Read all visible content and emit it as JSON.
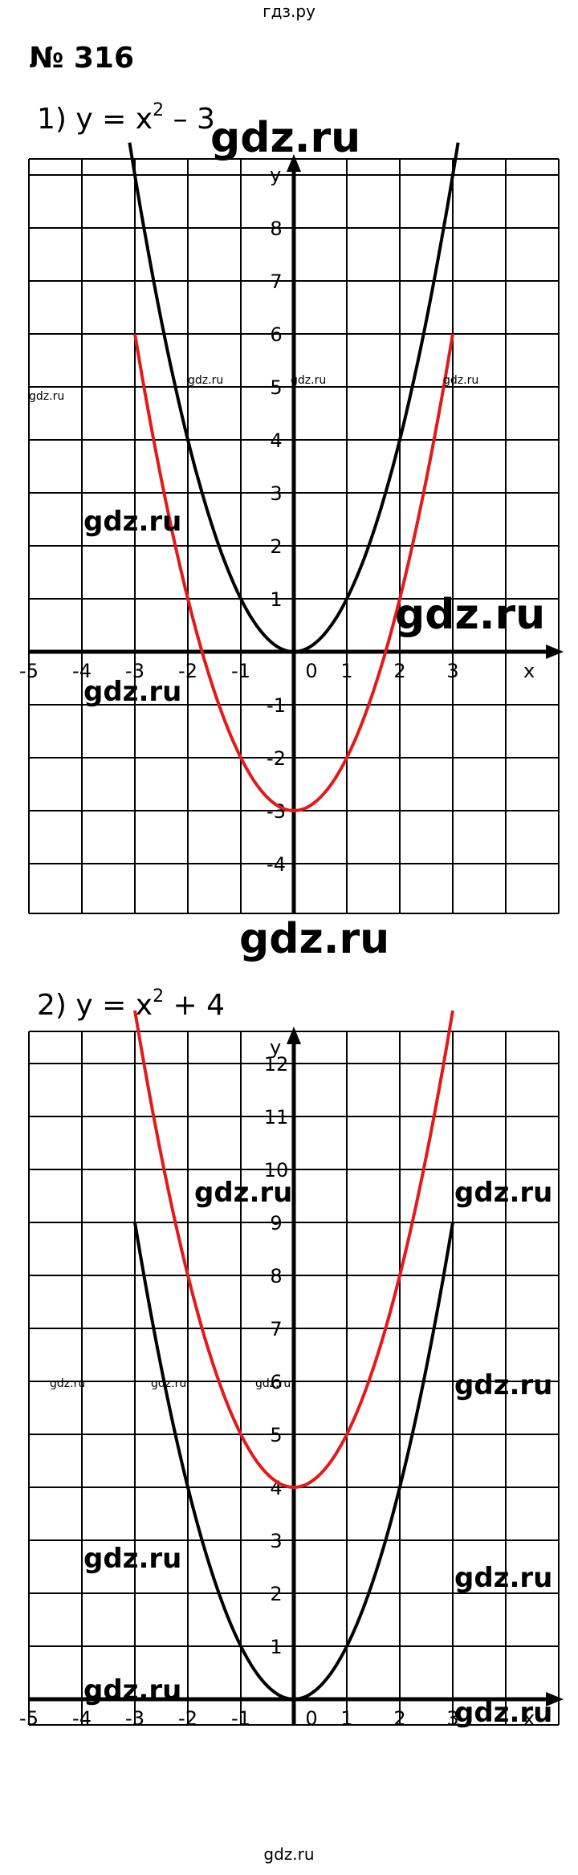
{
  "header": {
    "site": "гдз.ру"
  },
  "footer": {
    "site": "gdz.ru"
  },
  "task": {
    "number": "№ 316"
  },
  "watermark": "gdz.ru",
  "chart_data": [
    {
      "type": "line",
      "title": "1) y = x² − 3",
      "title_parts": {
        "prefix": "1) y = x",
        "exponent": "2",
        "suffix": " – 3"
      },
      "xlabel": "x",
      "ylabel": "y",
      "xlim": [
        -5.5,
        5
      ],
      "ylim": [
        -5,
        9
      ],
      "x_ticks": [
        -5,
        -4,
        -3,
        -2,
        -1,
        0,
        1,
        2,
        3
      ],
      "y_ticks": [
        -4,
        -3,
        -2,
        -1,
        1,
        2,
        3,
        4,
        5,
        6,
        7,
        8
      ],
      "grid": true,
      "series": [
        {
          "formula": "y = x²",
          "color": "#000000",
          "x_range": [
            -3.1,
            3.1
          ]
        },
        {
          "formula": "y = x² − 3",
          "color": "#e41a1a",
          "x_range": [
            -3,
            3
          ]
        }
      ]
    },
    {
      "type": "line",
      "title": "2) y = x² + 4",
      "title_parts": {
        "prefix": "2) y = x",
        "exponent": "2",
        "suffix": " + 4"
      },
      "xlabel": "x",
      "ylabel": "y",
      "xlim": [
        -5.5,
        5
      ],
      "ylim": [
        -1,
        13
      ],
      "x_ticks": [
        -5,
        -4,
        -3,
        -2,
        -1,
        0,
        1,
        2,
        3
      ],
      "y_ticks": [
        1,
        2,
        3,
        4,
        5,
        6,
        7,
        8,
        9,
        10,
        11,
        12
      ],
      "grid": true,
      "series": [
        {
          "formula": "y = x²",
          "color": "#000000",
          "x_range": [
            -3,
            3
          ]
        },
        {
          "formula": "y = x² + 4",
          "color": "#e41a1a",
          "x_range": [
            -3,
            3
          ]
        }
      ]
    }
  ]
}
